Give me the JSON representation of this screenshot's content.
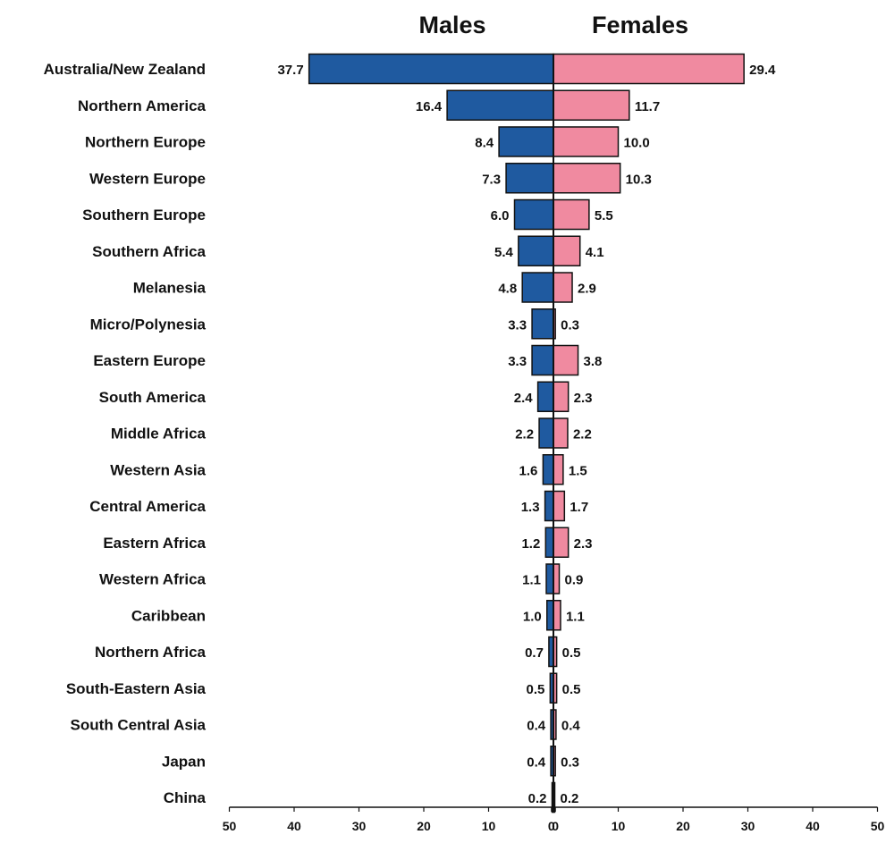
{
  "chart_data": {
    "type": "bar",
    "orientation": "horizontal-diverging",
    "series": [
      {
        "name": "Males",
        "color": "#1f5aa0",
        "values": [
          37.7,
          16.4,
          8.4,
          7.3,
          6.0,
          5.4,
          4.8,
          3.3,
          3.3,
          2.4,
          2.2,
          1.6,
          1.3,
          1.2,
          1.1,
          1.0,
          0.7,
          0.5,
          0.4,
          0.4,
          0.2
        ],
        "labels": [
          "37.7",
          "16.4",
          "8.4",
          "7.3",
          "6.0",
          "5.4",
          "4.8",
          "3.3",
          "3.3",
          "2.4",
          "2.2",
          "1.6",
          "1.3",
          "1.2",
          "1.1",
          "1.0",
          "0.7",
          "0.5",
          "0.4",
          "0.4",
          "0.2"
        ]
      },
      {
        "name": "Females",
        "color": "#f08aa0",
        "values": [
          29.4,
          11.7,
          10.0,
          10.3,
          5.5,
          4.1,
          2.9,
          0.3,
          3.8,
          2.3,
          2.2,
          1.5,
          1.7,
          2.3,
          0.9,
          1.1,
          0.5,
          0.5,
          0.4,
          0.3,
          0.2
        ],
        "labels": [
          "29.4",
          "11.7",
          "10.0",
          "10.3",
          "5.5",
          "4.1",
          "2.9",
          "0.3",
          "3.8",
          "2.3",
          "2.2",
          "1.5",
          "1.7",
          "2.3",
          "0.9",
          "1.1",
          "0.5",
          "0.5",
          "0.4",
          "0.3",
          "0.2"
        ]
      }
    ],
    "categories": [
      "Australia/New Zealand",
      "Northern America",
      "Northern Europe",
      "Western Europe",
      "Southern Europe",
      "Southern Africa",
      "Melanesia",
      "Micro/Polynesia",
      "Eastern Europe",
      "South America",
      "Middle Africa",
      "Western Asia",
      "Central America",
      "Eastern Africa",
      "Western Africa",
      "Caribbean",
      "Northern Africa",
      "South-Eastern Asia",
      "South Central Asia",
      "Japan",
      "China"
    ],
    "xlim": [
      -50,
      50
    ],
    "x_ticks": [
      "50",
      "40",
      "30",
      "20",
      "10",
      "0",
      "0",
      "10",
      "20",
      "30",
      "40",
      "50"
    ],
    "x_tick_values": [
      -50,
      -40,
      -30,
      -20,
      -10,
      -0.3,
      0.3,
      10,
      20,
      30,
      40,
      50
    ],
    "title": "",
    "xlabel": "",
    "ylabel": "",
    "grid": false,
    "legend": "top"
  }
}
